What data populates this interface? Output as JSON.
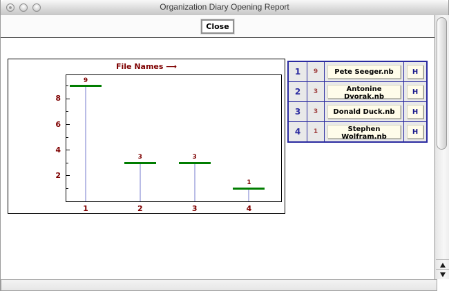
{
  "window": {
    "title": "Organization Diary Opening Report"
  },
  "toolbar": {
    "close_label": "Close"
  },
  "chart_data": {
    "type": "stem",
    "title": "File Names  ⟶",
    "x": [
      1,
      2,
      3,
      4
    ],
    "values": [
      9,
      3,
      3,
      1
    ],
    "labels": [
      "9",
      "3",
      "3",
      "1"
    ],
    "xticks": [
      1,
      2,
      3,
      4
    ],
    "yticks_major": [
      2,
      4,
      6,
      8
    ],
    "yticks_minor": [
      1,
      3,
      5,
      7,
      9
    ],
    "xlim": [
      0.645,
      4.59
    ],
    "ylim": [
      0,
      9.85
    ],
    "xlabel": "",
    "ylabel": "",
    "grid": false,
    "legend": "none",
    "stem_color": "#b9bce6",
    "cap_color": "#007d00",
    "label_color": "#7e0000"
  },
  "table": {
    "rows": [
      {
        "index": "1",
        "count": "9",
        "file": "Pete Seeger.nb",
        "action": "H"
      },
      {
        "index": "2",
        "count": "3",
        "file": "Antonine Dvorak.nb",
        "action": "H"
      },
      {
        "index": "3",
        "count": "3",
        "file": "Donald Duck.nb",
        "action": "H"
      },
      {
        "index": "4",
        "count": "1",
        "file": "Stephen Wolfram.nb",
        "action": "H"
      }
    ]
  },
  "colors": {
    "accent_maroon": "#7e0000",
    "accent_green": "#007d00",
    "grid_navy": "#2a2aa0",
    "button_cream": "#fffcea",
    "cell_gray": "#e9e9e9"
  }
}
